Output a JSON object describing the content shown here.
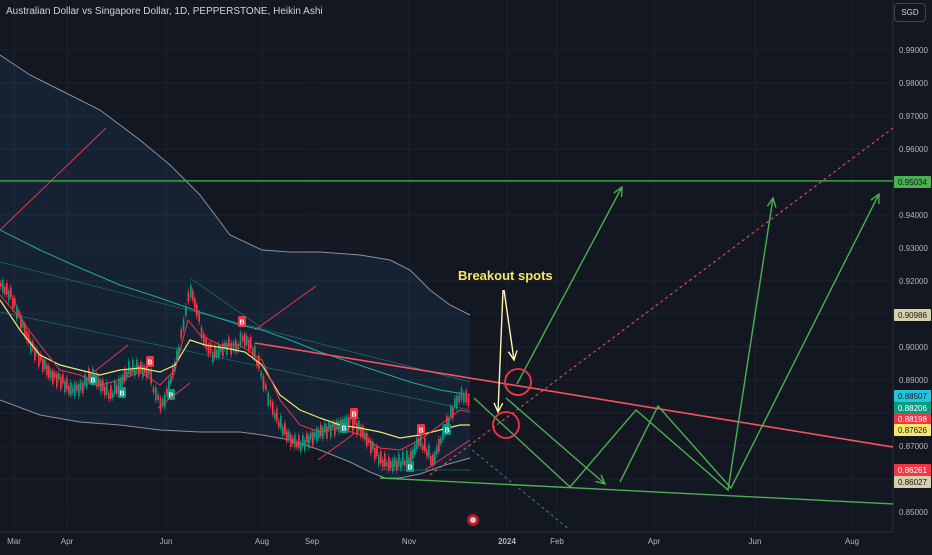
{
  "header": {
    "title": "Australian Dollar vs Singapore Dollar, 1D, PEPPERSTONE, Heikin Ashi",
    "currency": "SGD"
  },
  "chart_data": {
    "type": "candlestick",
    "title": "Australian Dollar vs Singapore Dollar, 1D, PEPPERSTONE, Heikin Ashi",
    "y_ticks": [
      "0.99000",
      "0.98000",
      "0.97000",
      "0.96000",
      "0.95000",
      "0.94000",
      "0.93000",
      "0.92000",
      "0.91000",
      "0.90000",
      "0.89000",
      "0.88000",
      "0.87000",
      "0.86000",
      "0.85000"
    ],
    "x_ticks": [
      "Mar",
      "Apr",
      "Jun",
      "Aug",
      "Sep",
      "Nov",
      "2024",
      "Feb",
      "Apr",
      "Jun",
      "Aug"
    ],
    "ylim": [
      0.8475,
      0.9975
    ],
    "price_badges": [
      {
        "label": "0.95034",
        "color": "#4caf50",
        "text_color": "#131722"
      },
      {
        "label": "0.90986",
        "color": "#d6d0a8",
        "text_color": "#131722"
      },
      {
        "label": "0.88507",
        "color": "#26c6da",
        "text_color": "#131722"
      },
      {
        "label": "0.88206",
        "color": "#089981",
        "text_color": "#ffffff"
      },
      {
        "label": "0.88198",
        "color": "#f23645",
        "text_color": "#ffffff"
      },
      {
        "label": "0.87626",
        "color": "#f7e66a",
        "text_color": "#131722"
      },
      {
        "label": "0.86261",
        "color": "#f23645",
        "text_color": "#ffffff"
      },
      {
        "label": "0.86027",
        "color": "#d6d0a8",
        "text_color": "#131722"
      }
    ],
    "annotation": "Breakout spots",
    "signal_label": "B",
    "horizontal_level": 0.95034
  }
}
